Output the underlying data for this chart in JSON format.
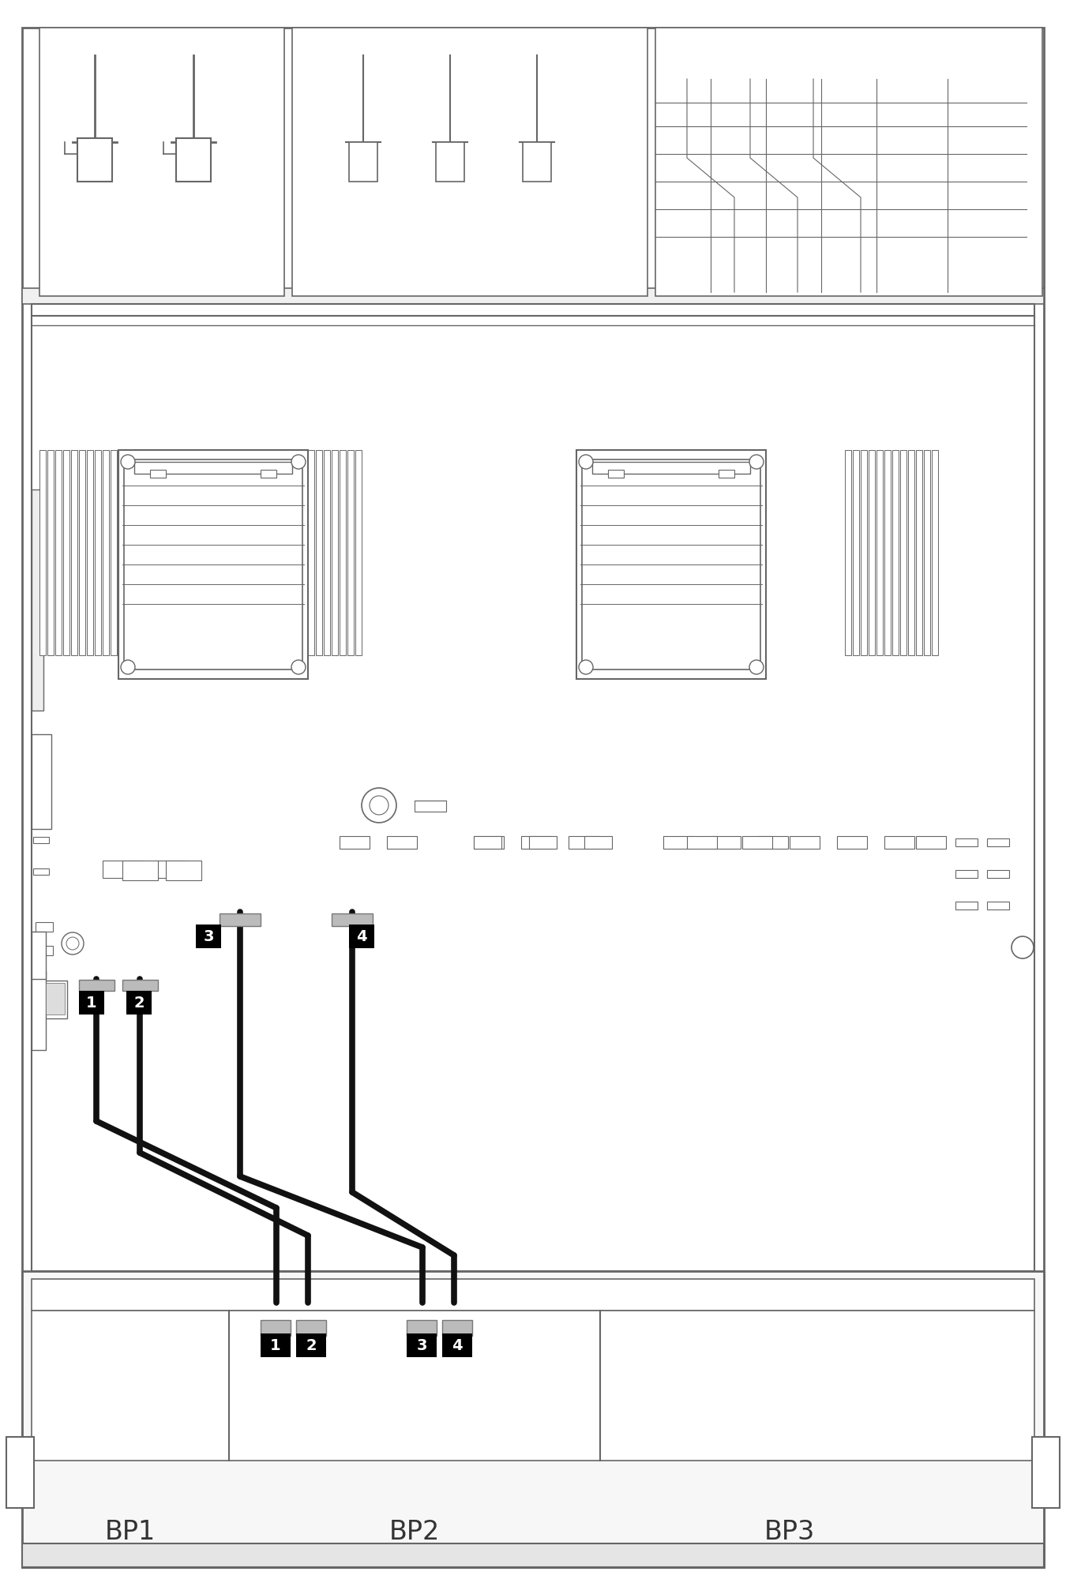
{
  "fig_width": 13.5,
  "fig_height": 20.19,
  "bg_color": "#ffffff",
  "outline_color": "#666666",
  "cable_dark": "#111111",
  "cable_gray": "#999999",
  "label_bg": "#000000",
  "label_fg": "#ffffff",
  "connector_bg": "#bbbbbb",
  "bp_labels": [
    "BP1",
    "BP2",
    "BP3"
  ],
  "mem_slot_color": "#888888",
  "component_color": "#aaaaaa"
}
